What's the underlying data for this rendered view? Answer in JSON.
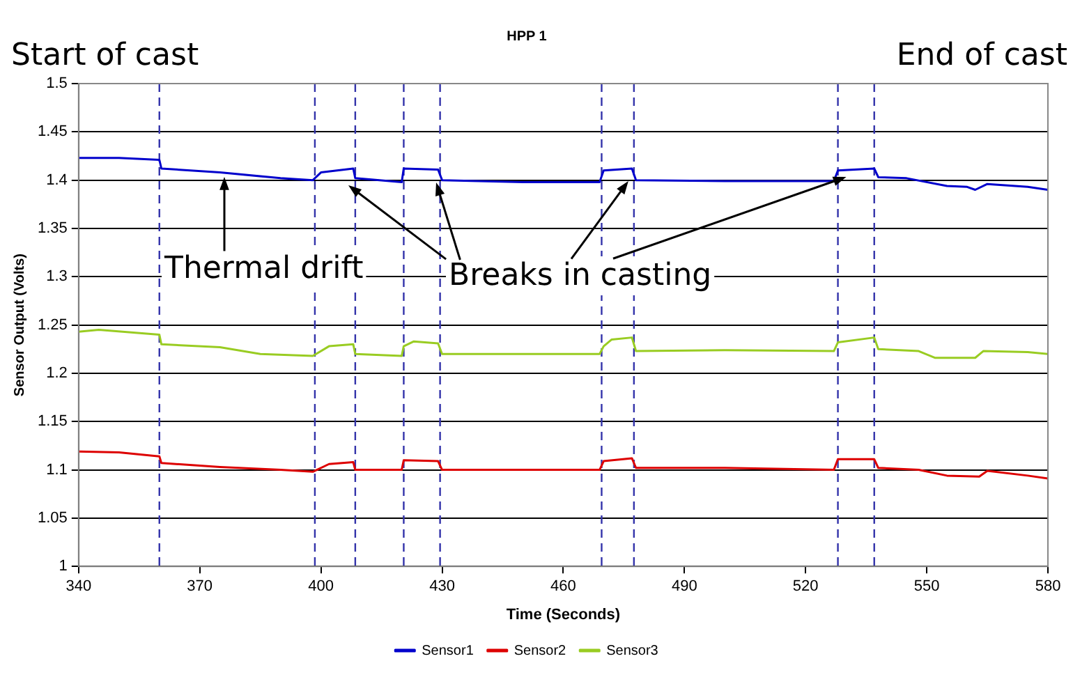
{
  "chart_data": {
    "type": "line",
    "title": "HPP 1",
    "xlabel": "Time (Seconds)",
    "ylabel": "Sensor Output (Volts)",
    "xlim": [
      340,
      580
    ],
    "xticks": [
      340,
      370,
      400,
      430,
      460,
      490,
      520,
      550,
      580
    ],
    "ylim": [
      1,
      1.5
    ],
    "yticks": [
      1,
      1.05,
      1.1,
      1.15,
      1.2,
      1.25,
      1.3,
      1.35,
      1.4,
      1.45,
      1.5
    ],
    "grid": "y",
    "legend": "bottom",
    "marker": "none",
    "line_style": "solid",
    "series": [
      {
        "name": "Sensor1",
        "color": "#0000cc",
        "x": [
          340,
          350,
          360,
          360.5,
          375,
          390,
          398,
          400,
          408,
          408.5,
          420,
          420.5,
          429,
          430,
          450,
          469,
          470,
          477,
          478,
          500,
          527,
          528,
          537,
          538,
          545,
          555,
          560,
          562,
          565,
          575,
          580
        ],
        "values": [
          1.423,
          1.423,
          1.421,
          1.412,
          1.408,
          1.402,
          1.4,
          1.408,
          1.412,
          1.402,
          1.398,
          1.412,
          1.411,
          1.4,
          1.398,
          1.398,
          1.41,
          1.412,
          1.4,
          1.399,
          1.399,
          1.41,
          1.412,
          1.403,
          1.402,
          1.394,
          1.393,
          1.39,
          1.396,
          1.393,
          1.39
        ]
      },
      {
        "name": "Sensor2",
        "color": "#dd0000",
        "x": [
          340,
          350,
          360,
          360.5,
          375,
          390,
          398,
          402,
          408,
          408.5,
          420,
          420.5,
          429,
          430,
          469,
          470,
          477,
          478,
          500,
          527,
          528,
          537,
          538,
          548,
          555,
          563,
          565,
          575,
          580
        ],
        "values": [
          1.119,
          1.118,
          1.114,
          1.107,
          1.103,
          1.1,
          1.098,
          1.106,
          1.108,
          1.1,
          1.1,
          1.11,
          1.109,
          1.1,
          1.1,
          1.109,
          1.112,
          1.102,
          1.102,
          1.1,
          1.111,
          1.111,
          1.102,
          1.1,
          1.094,
          1.093,
          1.099,
          1.094,
          1.091
        ]
      },
      {
        "name": "Sensor3",
        "color": "#99cc22",
        "x": [
          340,
          345,
          360,
          360.5,
          375,
          385,
          398,
          402,
          408,
          408.5,
          420,
          420.5,
          423,
          429,
          430,
          469,
          470,
          472,
          477,
          478,
          500,
          527,
          528,
          537,
          538,
          548,
          552,
          562,
          564,
          575,
          580
        ],
        "values": [
          1.243,
          1.245,
          1.24,
          1.23,
          1.227,
          1.22,
          1.218,
          1.228,
          1.23,
          1.22,
          1.218,
          1.228,
          1.233,
          1.231,
          1.22,
          1.22,
          1.228,
          1.235,
          1.237,
          1.223,
          1.224,
          1.223,
          1.232,
          1.237,
          1.225,
          1.223,
          1.216,
          1.216,
          1.223,
          1.222,
          1.22
        ]
      }
    ],
    "ref_lines": [
      {
        "axis": "x",
        "value": 360,
        "color": "#3333aa",
        "line_style": "dashed"
      },
      {
        "axis": "x",
        "value": 398.5,
        "color": "#3333aa",
        "line_style": "dashed"
      },
      {
        "axis": "x",
        "value": 408.5,
        "color": "#3333aa",
        "line_style": "dashed"
      },
      {
        "axis": "x",
        "value": 420.5,
        "color": "#3333aa",
        "line_style": "dashed"
      },
      {
        "axis": "x",
        "value": 429.5,
        "color": "#3333aa",
        "line_style": "dashed"
      },
      {
        "axis": "x",
        "value": 469.5,
        "color": "#3333aa",
        "line_style": "dashed"
      },
      {
        "axis": "x",
        "value": 477.5,
        "color": "#3333aa",
        "line_style": "dashed"
      },
      {
        "axis": "x",
        "value": 528,
        "color": "#3333aa",
        "line_style": "dashed"
      },
      {
        "axis": "x",
        "value": 537,
        "color": "#3333aa",
        "line_style": "dashed"
      }
    ],
    "annotations": [
      "Start of cast",
      "End of cast",
      {
        "text": "Thermal drift",
        "x": 376,
        "y": 1.408
      },
      {
        "text": "Breaks in casting",
        "x": 408.5,
        "y": 1.402
      }
    ]
  }
}
